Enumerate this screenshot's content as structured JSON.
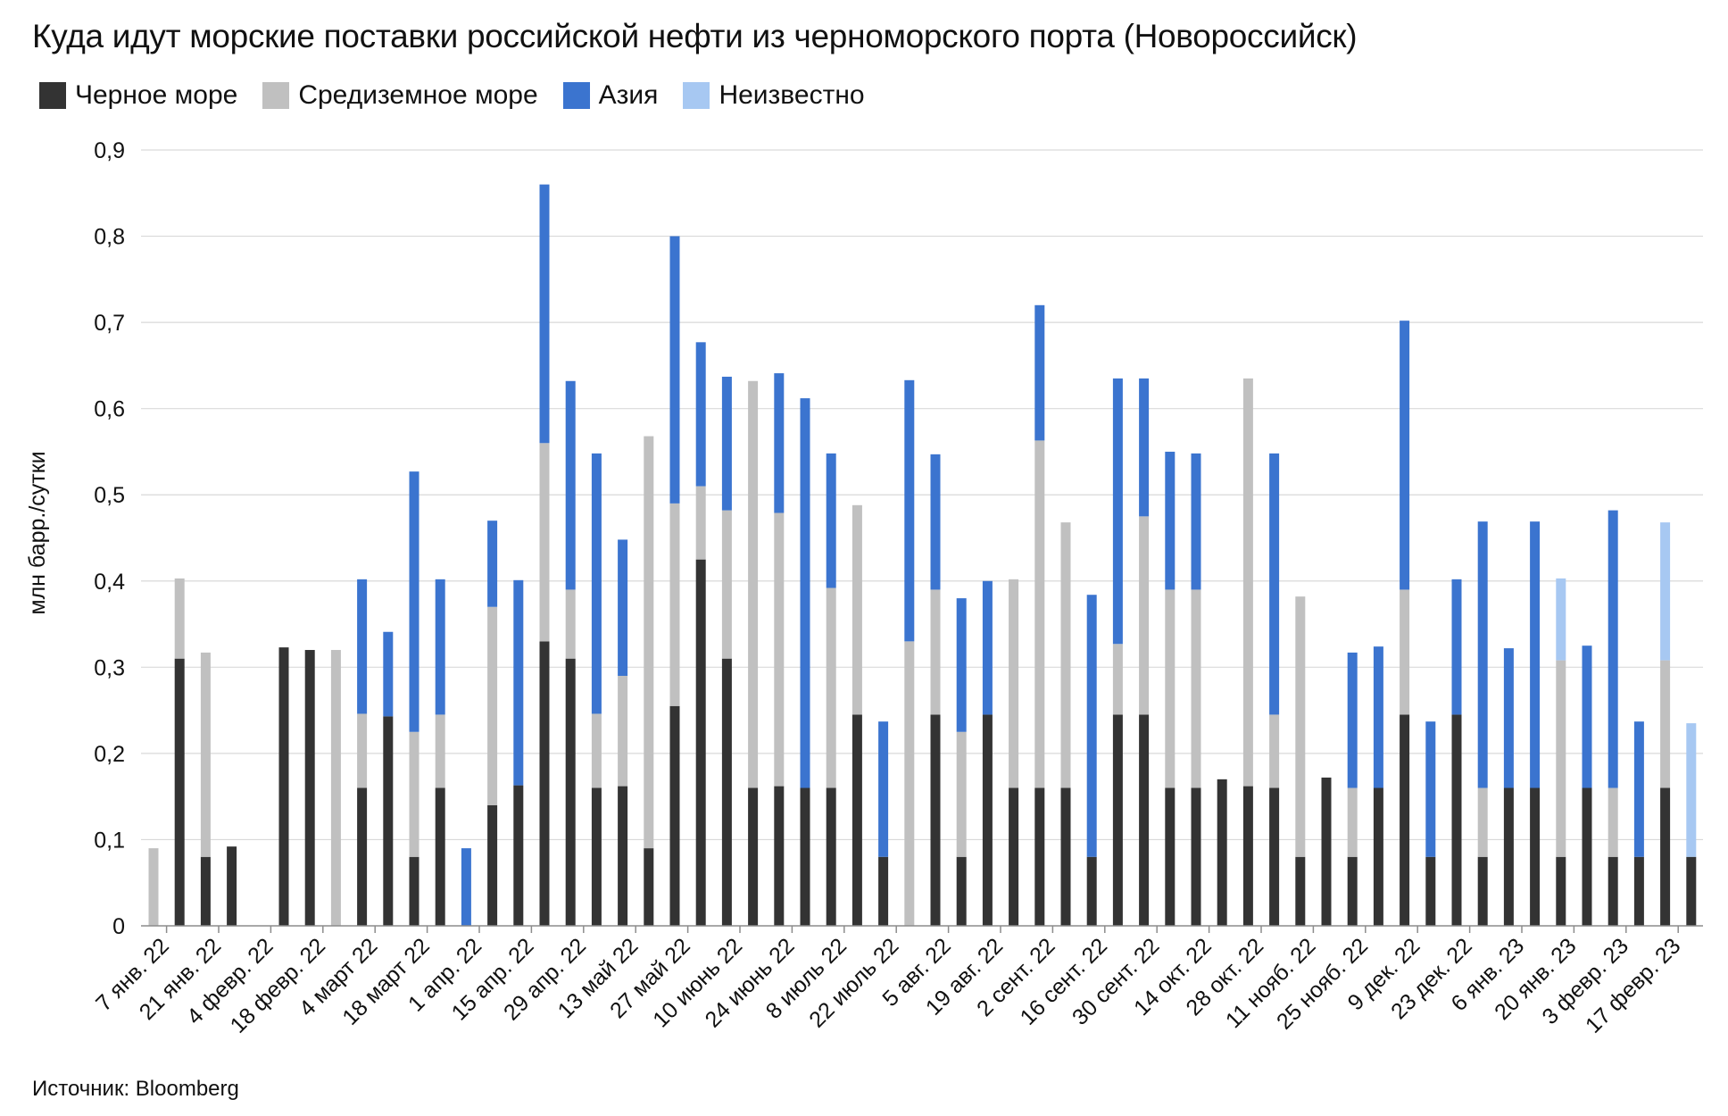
{
  "chart_data": {
    "type": "bar",
    "stacked": true,
    "title": "Куда идут морские поставки российской нефти из черноморского порта (Новороссийск)",
    "ylabel": "млн барр./сутки",
    "xlabel": "",
    "ylim": [
      0,
      0.9
    ],
    "yticks": [
      "0",
      "0,1",
      "0,2",
      "0,3",
      "0,4",
      "0,5",
      "0,6",
      "0,7",
      "0,8",
      "0,9"
    ],
    "grid": true,
    "legend_position": "top-left",
    "source": "Источник: Bloomberg",
    "colors": {
      "black_sea": "#333333",
      "mediterranean": "#c0c0c0",
      "asia": "#3b74cf",
      "unknown": "#a7c8f2",
      "grid": "#d9d9d9",
      "axis": "#8c8c8c"
    },
    "tick_labels": [
      "7 янв. 22",
      "21 янв. 22",
      "4 февр. 22",
      "18 февр. 22",
      "4 март 22",
      "18 март 22",
      "1 апр. 22",
      "15 апр. 22",
      "29 апр. 22",
      "13 май 22",
      "27 май 22",
      "10 июнь 22",
      "24 июнь 22",
      "8 июль 22",
      "22 июль 22",
      "5 авг. 22",
      "19 авг. 22",
      "2 сент. 22",
      "16 сент. 22",
      "30 сент. 22",
      "14 окт. 22",
      "28 окт. 22",
      "11 нояб. 22",
      "25 нояб. 22",
      "9 дек. 22",
      "23 дек. 22",
      "6 янв. 23",
      "20 янв. 23",
      "3 февр. 23",
      "17 февр. 23"
    ],
    "series": [
      {
        "name": "Черное море",
        "color": "#333333",
        "values": [
          0,
          0.31,
          0.08,
          0.092,
          0,
          0.323,
          0.32,
          0,
          0.16,
          0.243,
          0.08,
          0.16,
          0,
          0.14,
          0.163,
          0.33,
          0.31,
          0.16,
          0.162,
          0.09,
          0.255,
          0.425,
          0.31,
          0.16,
          0.162,
          0.16,
          0.16,
          0.245,
          0.08,
          0,
          0.245,
          0.08,
          0.245,
          0.16,
          0.16,
          0.16,
          0.08,
          0.245,
          0.245,
          0.16,
          0.16,
          0.17,
          0.162,
          0.16,
          0.08,
          0.172,
          0.08,
          0.16,
          0.245,
          0.08,
          0.245,
          0.08,
          0.16,
          0.16,
          0.08,
          0.16,
          0.08,
          0.08,
          0.16,
          0.08
        ]
      },
      {
        "name": "Средиземное море",
        "color": "#c0c0c0",
        "values": [
          0.09,
          0.093,
          0.237,
          0,
          0,
          0,
          0,
          0.32,
          0.086,
          0,
          0.145,
          0.085,
          0,
          0.23,
          0,
          0.23,
          0.08,
          0.086,
          0.128,
          0.478,
          0.235,
          0.085,
          0.172,
          0.472,
          0.317,
          0,
          0.232,
          0.243,
          0,
          0.33,
          0.145,
          0.145,
          0,
          0.242,
          0.403,
          0.308,
          0,
          0.082,
          0.23,
          0.23,
          0.23,
          0,
          0.473,
          0.085,
          0.302,
          0,
          0.08,
          0,
          0.145,
          0,
          0,
          0.08,
          0,
          0,
          0.228,
          0,
          0.08,
          0,
          0.148,
          0
        ]
      },
      {
        "name": "Азия",
        "color": "#3b74cf",
        "values": [
          0,
          0,
          0,
          0,
          0,
          0,
          0,
          0,
          0.156,
          0.098,
          0.302,
          0.157,
          0.09,
          0.1,
          0.238,
          0.3,
          0.242,
          0.302,
          0.158,
          0,
          0.31,
          0.167,
          0.155,
          0,
          0.162,
          0.452,
          0.156,
          0,
          0.157,
          0.303,
          0.157,
          0.155,
          0.155,
          0,
          0.157,
          0,
          0.304,
          0.308,
          0.16,
          0.16,
          0.158,
          0,
          0,
          0.303,
          0,
          0,
          0.157,
          0.164,
          0.312,
          0.157,
          0.157,
          0.309,
          0.162,
          0.309,
          0,
          0.165,
          0.322,
          0.157,
          0,
          0
        ]
      },
      {
        "name": "Неизвестно",
        "color": "#a7c8f2",
        "values": [
          0,
          0,
          0,
          0,
          0,
          0,
          0,
          0,
          0,
          0,
          0,
          0,
          0,
          0,
          0,
          0,
          0,
          0,
          0,
          0,
          0,
          0,
          0,
          0,
          0,
          0,
          0,
          0,
          0,
          0,
          0,
          0,
          0,
          0,
          0,
          0,
          0,
          0,
          0,
          0,
          0,
          0,
          0,
          0,
          0,
          0,
          0,
          0,
          0,
          0,
          0,
          0,
          0,
          0,
          0.095,
          0,
          0,
          0,
          0.16,
          0.155
        ]
      }
    ]
  }
}
